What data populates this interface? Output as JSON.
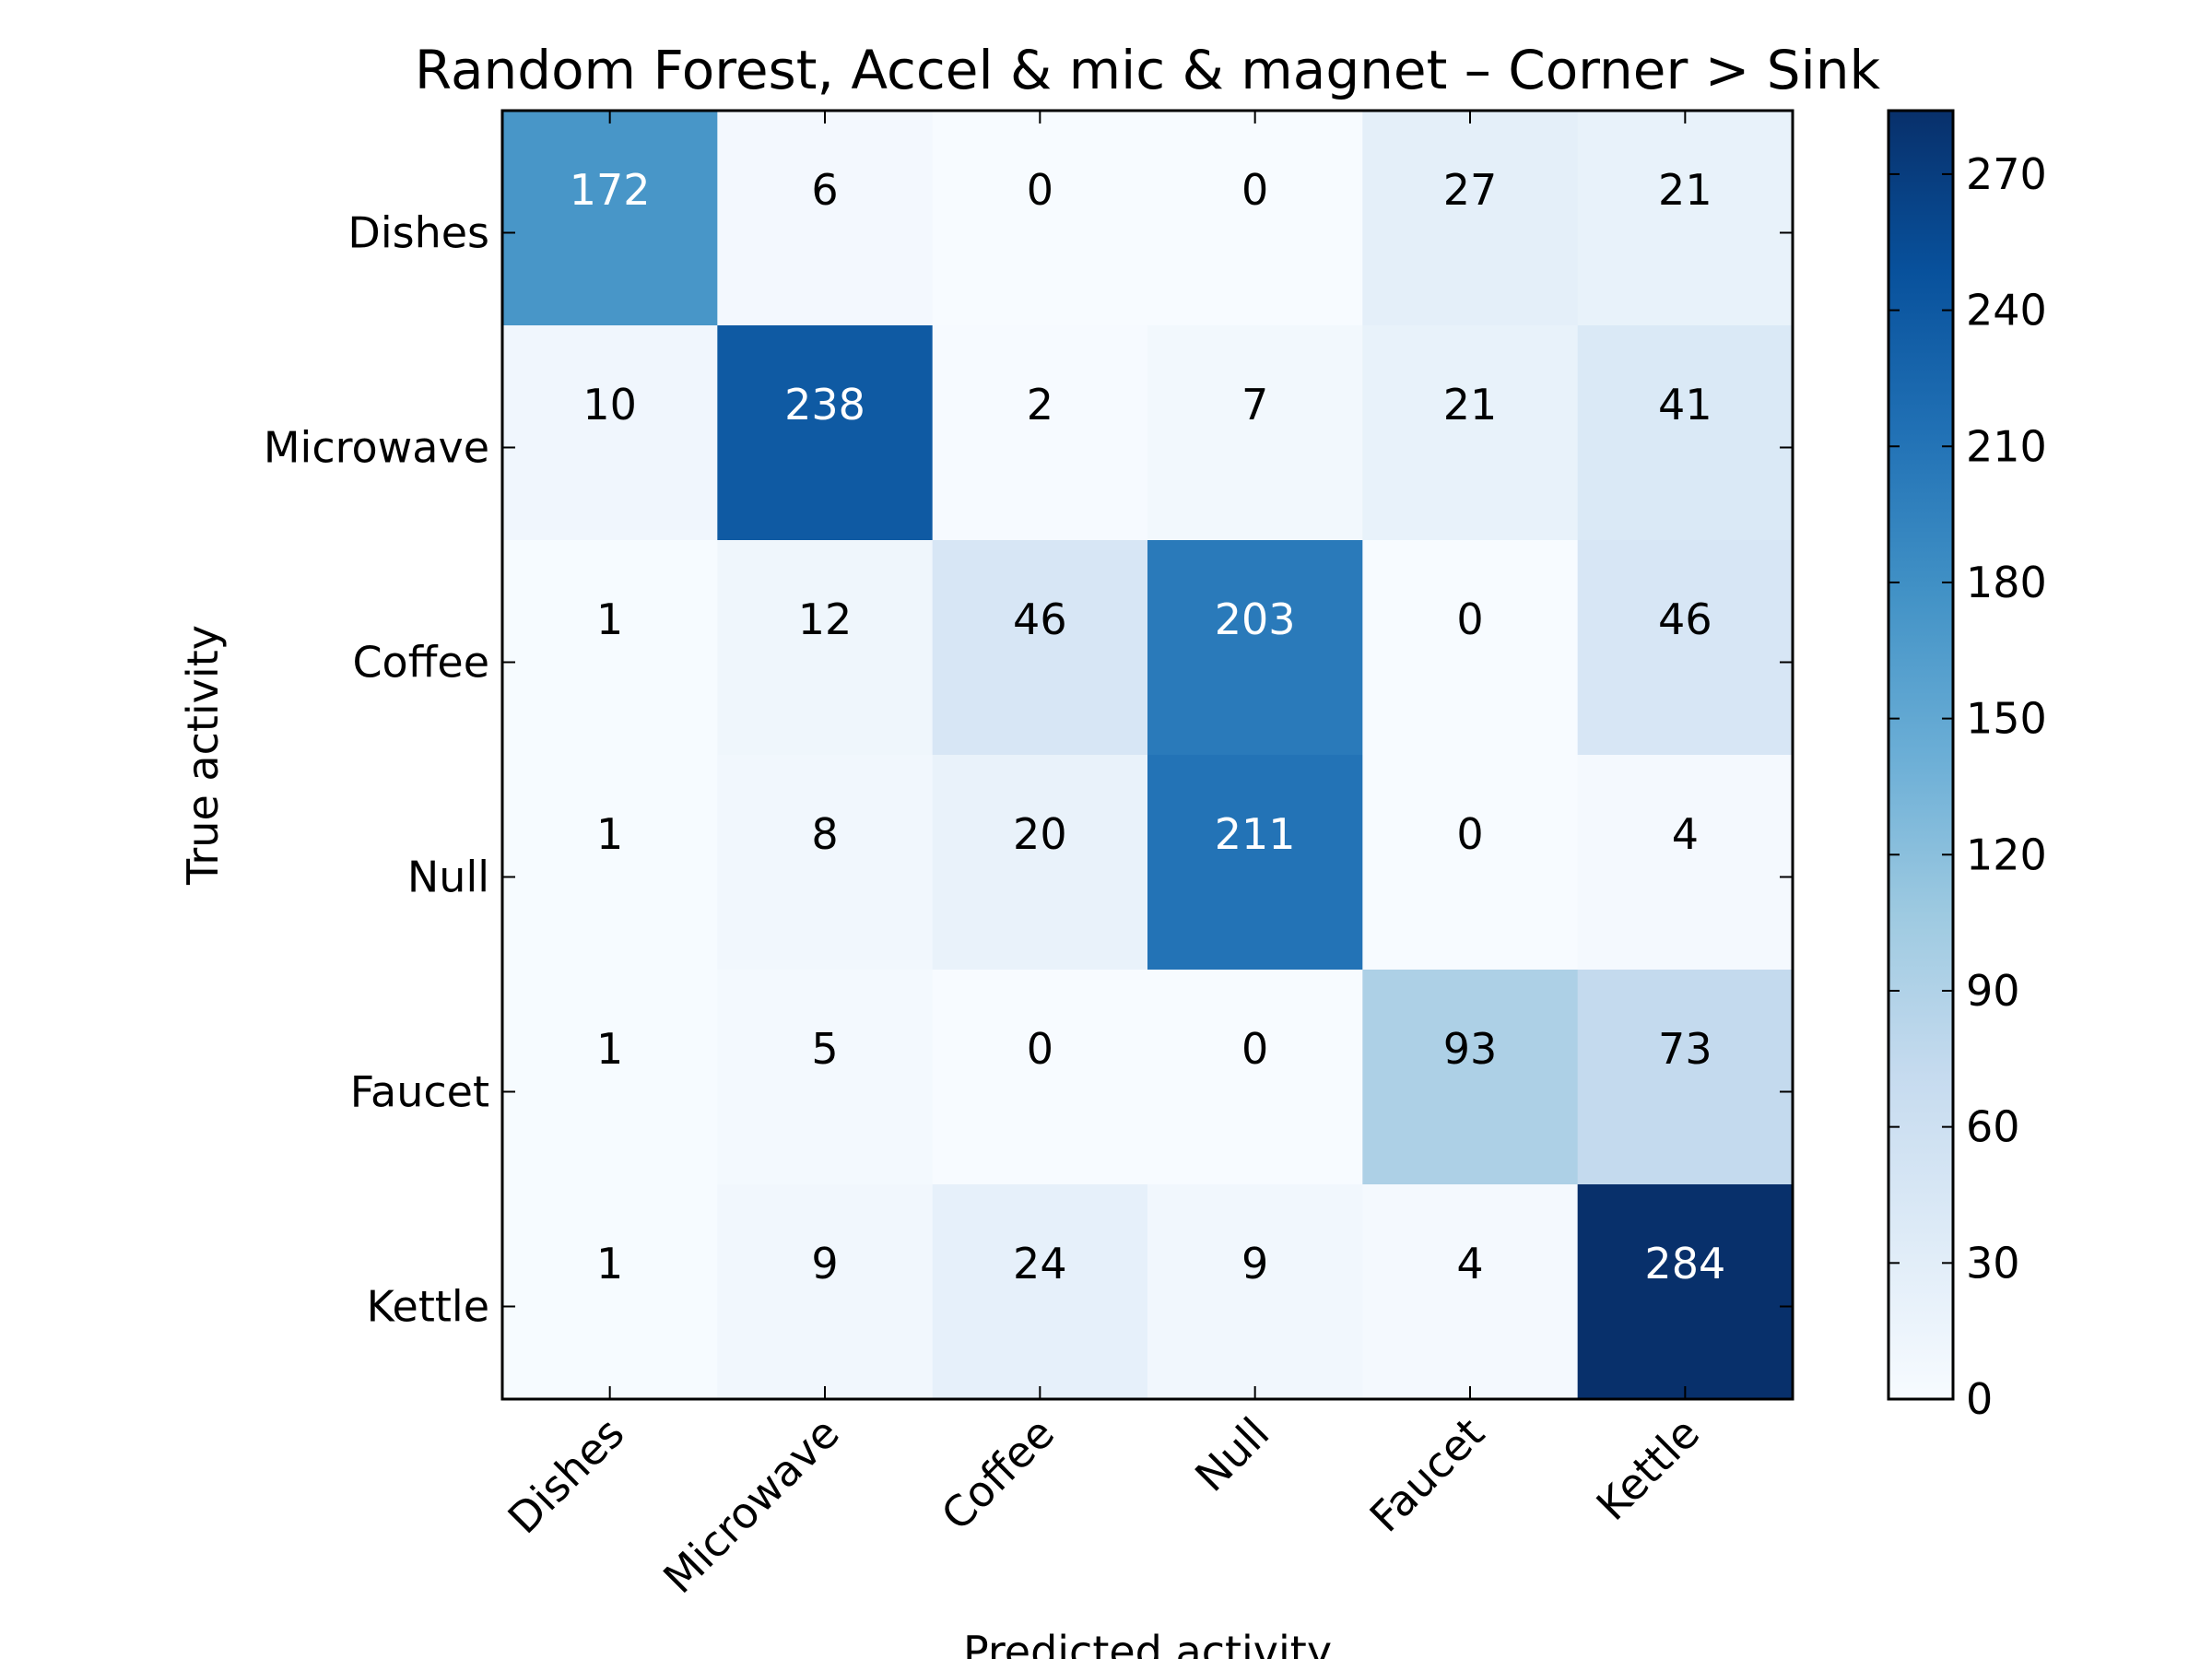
{
  "chart_data": {
    "type": "heatmap",
    "title": "Random Forest, Accel & mic & magnet – Corner > Sink",
    "xlabel": "Predicted activity",
    "ylabel": "True activity",
    "x_categories": [
      "Dishes",
      "Microwave",
      "Coffee",
      "Null",
      "Faucet",
      "Kettle"
    ],
    "y_categories": [
      "Dishes",
      "Microwave",
      "Coffee",
      "Null",
      "Faucet",
      "Kettle"
    ],
    "values": [
      [
        172,
        6,
        0,
        0,
        27,
        21
      ],
      [
        10,
        238,
        2,
        7,
        21,
        41
      ],
      [
        1,
        12,
        46,
        203,
        0,
        46
      ],
      [
        1,
        8,
        20,
        211,
        0,
        4
      ],
      [
        1,
        5,
        0,
        0,
        93,
        73
      ],
      [
        1,
        9,
        24,
        9,
        4,
        284
      ]
    ],
    "colormap": "Blues",
    "vmin": 0,
    "vmax": 284,
    "colorbar_ticks": [
      0,
      30,
      60,
      90,
      120,
      150,
      180,
      210,
      240,
      270
    ]
  }
}
